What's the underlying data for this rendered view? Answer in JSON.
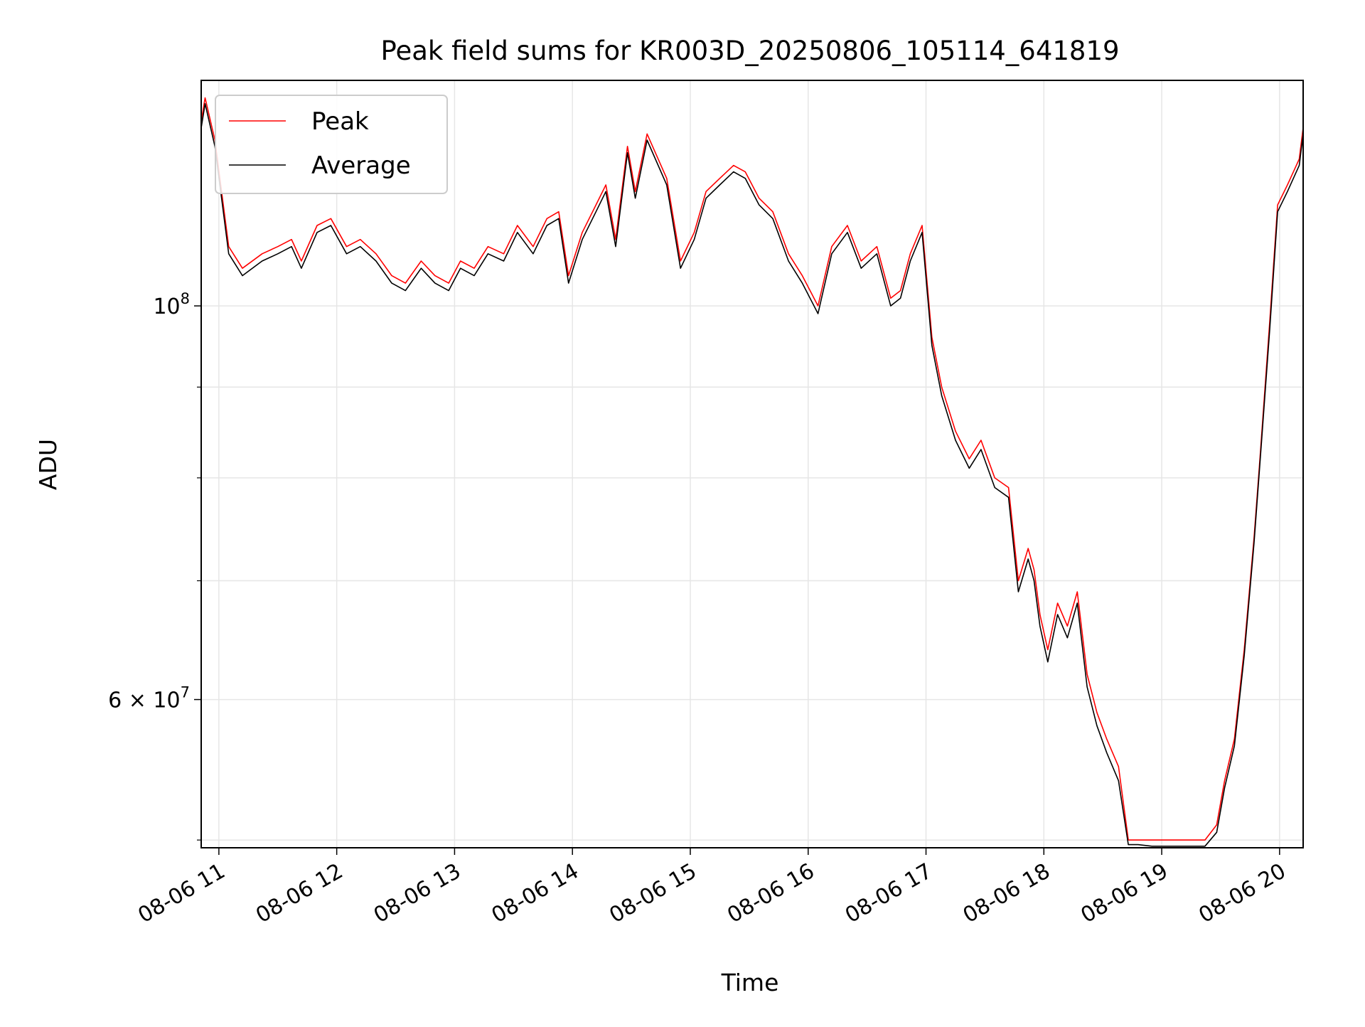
{
  "chart_data": {
    "type": "line",
    "title": "Peak field sums for KR003D_20250806_105114_641819",
    "xlabel": "Time",
    "ylabel": "ADU",
    "yscale": "log",
    "grid": true,
    "legend_position": "upper left",
    "xlim": [
      "2025-08-06T10:51",
      "2025-08-06T20:12"
    ],
    "ylim": [
      49500000,
      134000000
    ],
    "x_ticks": [
      "08-06 11",
      "08-06 12",
      "08-06 13",
      "08-06 14",
      "08-06 15",
      "08-06 16",
      "08-06 17",
      "08-06 18",
      "08-06 19",
      "08-06 20"
    ],
    "y_ticks_labeled": [
      {
        "value": 100000000,
        "mantissa": "10",
        "exponent": "8"
      },
      {
        "value": 60000000,
        "mantissa": "6 × 10",
        "exponent": "7"
      }
    ],
    "y_ticks_minor": [
      50000000,
      70000000,
      80000000,
      90000000
    ],
    "x": [
      "10:51",
      "10:53",
      "10:58",
      "11:05",
      "11:12",
      "11:22",
      "11:30",
      "11:37",
      "11:42",
      "11:50",
      "11:57",
      "12:05",
      "12:12",
      "12:20",
      "12:28",
      "12:35",
      "12:43",
      "12:50",
      "12:57",
      "13:03",
      "13:10",
      "13:17",
      "13:25",
      "13:32",
      "13:40",
      "13:47",
      "13:53",
      "13:58",
      "14:05",
      "14:12",
      "14:17",
      "14:22",
      "14:28",
      "14:32",
      "14:38",
      "14:48",
      "14:55",
      "15:02",
      "15:08",
      "15:15",
      "15:22",
      "15:28",
      "15:35",
      "15:42",
      "15:50",
      "15:57",
      "16:05",
      "16:12",
      "16:20",
      "16:27",
      "16:35",
      "16:42",
      "16:47",
      "16:52",
      "16:58",
      "17:03",
      "17:08",
      "17:15",
      "17:22",
      "17:28",
      "17:35",
      "17:42",
      "17:47",
      "17:52",
      "17:55",
      "17:58",
      "18:02",
      "18:07",
      "18:12",
      "18:17",
      "18:22",
      "18:27",
      "18:32",
      "18:38",
      "18:43",
      "18:48",
      "18:55",
      "19:05",
      "19:12",
      "19:22",
      "19:28",
      "19:32",
      "19:37",
      "19:42",
      "19:47",
      "19:50",
      "19:55",
      "19:59",
      "20:04",
      "20:10",
      "20:12"
    ],
    "series": [
      {
        "name": "Peak",
        "color": "#ff0000",
        "values": [
          127,
          131,
          124,
          108,
          105,
          107,
          108,
          109,
          106,
          111,
          112,
          108,
          109,
          107,
          104,
          103,
          106,
          104,
          103,
          106,
          105,
          108,
          107,
          111,
          108,
          112,
          113,
          104,
          110,
          114,
          117,
          109,
          123,
          116,
          125,
          118,
          106,
          110,
          116,
          118,
          120,
          119,
          115,
          113,
          107,
          104,
          100,
          108,
          111,
          106,
          108,
          101,
          102,
          107,
          111,
          96,
          90,
          85,
          82,
          84,
          80,
          79,
          70,
          73,
          71,
          67,
          64,
          68,
          66,
          69,
          62,
          59,
          57,
          55,
          50,
          50,
          50,
          50,
          50,
          50,
          51,
          54,
          57,
          64,
          74,
          82,
          98,
          114,
          117,
          121,
          126
        ]
      },
      {
        "name": "Average",
        "color": "#000000",
        "values": [
          126,
          130,
          123,
          107,
          104,
          106,
          107,
          108,
          105,
          110,
          111,
          107,
          108,
          106,
          103,
          102,
          105,
          103,
          102,
          105,
          104,
          107,
          106,
          110,
          107,
          111,
          112,
          103,
          109,
          113,
          116,
          108,
          122,
          115,
          124,
          117,
          105,
          109,
          115,
          117,
          119,
          118,
          114,
          112,
          106,
          103,
          99,
          107,
          110,
          105,
          107,
          100,
          101,
          106,
          110,
          95,
          89,
          84,
          81,
          83,
          79,
          78,
          69,
          72,
          70,
          66,
          63,
          67,
          65,
          68,
          61,
          58,
          56,
          54,
          49.7,
          49.7,
          49.6,
          49.6,
          49.6,
          49.6,
          50.5,
          53.5,
          56.5,
          63.5,
          73.5,
          81.5,
          97,
          113,
          116,
          120,
          125
        ]
      }
    ]
  }
}
